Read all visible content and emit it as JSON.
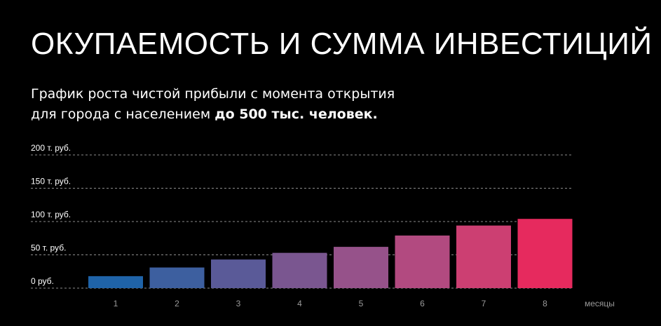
{
  "header": {
    "title": "ОКУПАЕМОСТЬ И СУММА ИНВЕСТИЦИЙ",
    "subtitle_line1": "График роста чистой прибыли с момента открытия",
    "subtitle_line2_prefix": "для города с населением ",
    "subtitle_line2_bold": "до 500 тыс. человек."
  },
  "chart_data": {
    "type": "bar",
    "categories": [
      "1",
      "2",
      "3",
      "4",
      "5",
      "6",
      "7",
      "8"
    ],
    "values": [
      18,
      31,
      43,
      53,
      62,
      79,
      94,
      104
    ],
    "y_tick_values": [
      0,
      50,
      100,
      150,
      200
    ],
    "y_tick_labels": [
      "0 руб.",
      "50 т. руб.",
      "100 т. руб.",
      "150 т. руб.",
      "200 т. руб."
    ],
    "xlabel": "месяцы",
    "ylabel": "",
    "ylim": [
      0,
      200
    ],
    "grid": true,
    "colors": [
      "#1f63a8",
      "#3d5f9f",
      "#5a5a98",
      "#7a5690",
      "#96528a",
      "#b24a80",
      "#cc3f72",
      "#e62a5e"
    ]
  }
}
